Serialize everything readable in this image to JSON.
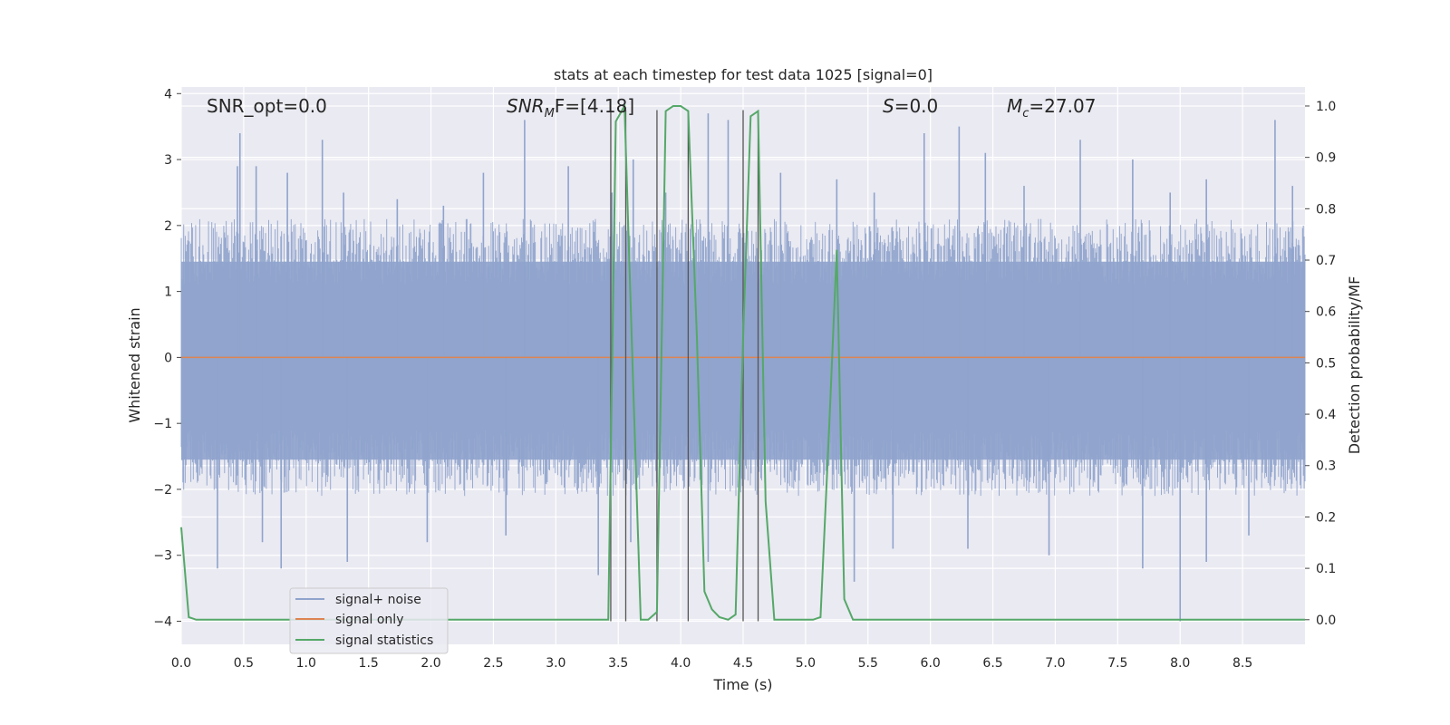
{
  "chart_data": {
    "type": "line",
    "title": "stats at each timestep for test data 1025 [signal=0]",
    "xlabel": "Time (s)",
    "ylabel": "Whitened strain",
    "y2label": "Detection probability/MF",
    "xlim": [
      0.0,
      9.0
    ],
    "ylim": [
      -4.35,
      4.1
    ],
    "y2lim": [
      -0.048,
      1.037
    ],
    "grid": true,
    "legend_position": "lower-left",
    "x_ticks": [
      "0.0",
      "0.5",
      "1.0",
      "1.5",
      "2.0",
      "2.5",
      "3.0",
      "3.5",
      "4.0",
      "4.5",
      "5.0",
      "5.5",
      "6.0",
      "6.5",
      "7.0",
      "7.5",
      "8.0",
      "8.5"
    ],
    "y_ticks": [
      "−4",
      "−3",
      "−2",
      "−1",
      "0",
      "1",
      "2",
      "3",
      "4"
    ],
    "y2_ticks": [
      "0.0",
      "0.1",
      "0.2",
      "0.3",
      "0.4",
      "0.5",
      "0.6",
      "0.7",
      "0.8",
      "0.9",
      "1.0"
    ],
    "annotations": {
      "snr_opt": "SNR_opt=0.0",
      "snr_mf_base": "SNR",
      "snr_mf_sub": "M",
      "snr_mf_rest": "F=[4.18]",
      "s_italic": "S",
      "s_rest": "=0.0",
      "mc_base": "M",
      "mc_sub": "c",
      "mc_rest": "=27.07"
    },
    "series": [
      {
        "name": "signal+ noise",
        "color": "#8fa3cc",
        "style": "dense noise, typical envelope ±1.8, peaks up to ±3.4",
        "peaks": [
          [
            0.47,
            3.4
          ],
          [
            0.45,
            2.9
          ],
          [
            0.6,
            2.9
          ],
          [
            0.85,
            2.8
          ],
          [
            1.13,
            3.3
          ],
          [
            1.3,
            2.5
          ],
          [
            1.73,
            2.4
          ],
          [
            2.1,
            2.3
          ],
          [
            2.42,
            2.8
          ],
          [
            2.75,
            3.6
          ],
          [
            3.1,
            2.9
          ],
          [
            3.45,
            2.5
          ],
          [
            3.62,
            3.0
          ],
          [
            3.88,
            2.5
          ],
          [
            4.22,
            3.7
          ],
          [
            4.38,
            3.6
          ],
          [
            4.8,
            2.8
          ],
          [
            5.25,
            2.7
          ],
          [
            5.55,
            2.5
          ],
          [
            5.95,
            3.4
          ],
          [
            6.23,
            3.5
          ],
          [
            6.44,
            3.1
          ],
          [
            6.75,
            2.6
          ],
          [
            7.2,
            3.3
          ],
          [
            7.62,
            3.0
          ],
          [
            7.92,
            2.5
          ],
          [
            8.21,
            2.7
          ],
          [
            8.76,
            3.6
          ],
          [
            8.9,
            2.6
          ],
          [
            0.29,
            -3.2
          ],
          [
            0.65,
            -2.8
          ],
          [
            0.8,
            -3.2
          ],
          [
            1.33,
            -3.1
          ],
          [
            1.97,
            -2.8
          ],
          [
            2.6,
            -2.7
          ],
          [
            3.34,
            -3.3
          ],
          [
            3.6,
            -2.8
          ],
          [
            4.22,
            -3.1
          ],
          [
            5.39,
            -3.4
          ],
          [
            5.7,
            -2.9
          ],
          [
            6.3,
            -2.9
          ],
          [
            6.95,
            -3.0
          ],
          [
            7.7,
            -3.2
          ],
          [
            8.0,
            -4.0
          ],
          [
            8.21,
            -3.1
          ],
          [
            8.55,
            -2.7
          ]
        ]
      },
      {
        "name": "signal only",
        "color": "#dd8452",
        "x": [
          0.0,
          9.0
        ],
        "y": [
          0.0,
          0.0
        ]
      },
      {
        "name": "signal statistics",
        "color": "#55a868",
        "axis": "y2",
        "x": [
          0.0,
          0.06,
          0.12,
          3.42,
          3.48,
          3.55,
          3.62,
          3.68,
          3.74,
          3.81,
          3.88,
          3.94,
          4.0,
          4.06,
          4.13,
          4.19,
          4.25,
          4.31,
          4.38,
          4.44,
          4.5,
          4.56,
          4.62,
          4.68,
          4.75,
          5.06,
          5.12,
          5.19,
          5.25,
          5.31,
          5.38,
          9.0
        ],
        "y": [
          0.18,
          0.005,
          0.0,
          0.0,
          0.97,
          1.0,
          0.45,
          0.0,
          0.0,
          0.015,
          0.99,
          1.0,
          1.0,
          0.99,
          0.55,
          0.055,
          0.02,
          0.005,
          0.0,
          0.01,
          0.55,
          0.98,
          0.99,
          0.23,
          0.0,
          0.0,
          0.005,
          0.38,
          0.72,
          0.04,
          0.0,
          0.0
        ]
      }
    ],
    "vertical_lines": {
      "color": "#555555",
      "x": [
        3.44,
        3.56,
        3.81,
        4.06,
        4.5,
        4.62
      ],
      "y_range": [
        -4.0,
        3.75
      ]
    }
  }
}
